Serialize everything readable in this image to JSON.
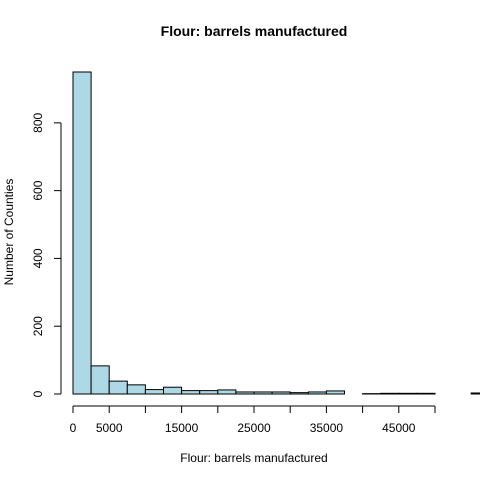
{
  "chart_data": {
    "type": "bar",
    "title": "Flour: barrels manufactured",
    "xlabel": "Flour: barrels manufactured",
    "ylabel": "Number of Counties",
    "bin_width": 2500,
    "bin_start": 0,
    "values": [
      950,
      83,
      38,
      27,
      13,
      20,
      10,
      10,
      12,
      6,
      6,
      6,
      4,
      6,
      9,
      0,
      1,
      2,
      2,
      2,
      0,
      0,
      3,
      0,
      0,
      0
    ],
    "xlim": [
      0,
      65000
    ],
    "ylim": [
      0,
      950
    ],
    "x_minor_ticks": [
      0,
      5000,
      10000,
      15000,
      20000,
      25000,
      30000,
      35000,
      40000,
      45000,
      50000
    ],
    "x_tick_labels": [
      {
        "value": 0,
        "label": "0"
      },
      {
        "value": 5000,
        "label": "5000"
      },
      {
        "value": 15000,
        "label": "15000"
      },
      {
        "value": 25000,
        "label": "25000"
      },
      {
        "value": 35000,
        "label": "35000"
      },
      {
        "value": 45000,
        "label": "45000"
      }
    ],
    "y_ticks": [
      0,
      200,
      400,
      600,
      800
    ],
    "bar_color": "#add8e6",
    "grid": false
  }
}
